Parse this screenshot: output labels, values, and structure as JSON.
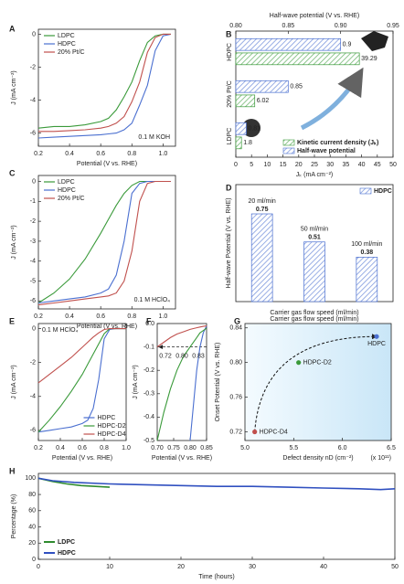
{
  "chart_data": [
    {
      "panel": "A",
      "type": "line",
      "xlabel": "Potential (V vs. RHE)",
      "ylabel": "J (mA cm⁻²)",
      "annotation": "0.1 M KOH",
      "x": [
        0.2,
        0.3,
        0.4,
        0.5,
        0.6,
        0.65,
        0.7,
        0.75,
        0.8,
        0.85,
        0.9,
        0.95,
        1.0,
        1.05
      ],
      "series": [
        {
          "name": "LDPC",
          "color": "#3a9a3a",
          "values": [
            -5.7,
            -5.6,
            -5.6,
            -5.5,
            -5.3,
            -5.1,
            -4.6,
            -3.8,
            -2.9,
            -1.6,
            -0.5,
            -0.1,
            0,
            0
          ]
        },
        {
          "name": "HDPC",
          "color": "#4a6fd0",
          "values": [
            -6.3,
            -6.25,
            -6.2,
            -6.15,
            -6.1,
            -6.05,
            -6.0,
            -5.8,
            -5.4,
            -4.3,
            -3.1,
            -1.0,
            -0.1,
            0
          ]
        },
        {
          "name": "20% Pt/C",
          "color": "#c0504d",
          "values": [
            -5.9,
            -5.9,
            -5.85,
            -5.8,
            -5.7,
            -5.6,
            -5.4,
            -5.0,
            -4.1,
            -2.9,
            -1.1,
            -0.2,
            0,
            0
          ]
        }
      ],
      "xlim": [
        0.2,
        1.08
      ],
      "ylim": [
        -6.8,
        0.3
      ],
      "xticks": [
        0.2,
        0.4,
        0.6,
        0.8,
        {
          "value": 1.0,
          "label": "1.0"
        }
      ],
      "yticks": [
        0,
        -2,
        -4,
        -6
      ],
      "legend": "upper left"
    },
    {
      "panel": "B",
      "type": "bar",
      "orientation": "horizontal",
      "x2label": "Half-wave potential (V vs. RHE)",
      "xlabel": "Jₖ (mA cm⁻²)",
      "categories": [
        "HDPC",
        "20% Pt/C",
        "LDPC"
      ],
      "series": [
        {
          "name": "Kinetic current density (Jₖ)",
          "color": "#3a9a3a",
          "values": [
            39.29,
            6.02,
            1.8
          ]
        },
        {
          "name": "Half-wave potential",
          "color": "#4a6fd0",
          "axis": "x2",
          "values": [
            0.9,
            0.85,
            0.81
          ]
        }
      ],
      "xlim": [
        0,
        50
      ],
      "xticks": [
        0,
        5,
        10,
        15,
        20,
        25,
        30,
        35,
        40,
        45,
        50
      ],
      "x2lim": [
        0.8,
        0.95
      ],
      "x2ticks": [
        {
          "value": 0.8,
          "label": "0.80"
        },
        0.85,
        {
          "value": 0.9,
          "label": "0.90"
        },
        0.95
      ],
      "legend": "lower right"
    },
    {
      "panel": "C",
      "type": "line",
      "xlabel": "Potential (V vs. RHE)",
      "ylabel": "J (mA cm⁻²)",
      "annotation": "0.1 M HClO₄",
      "x": [
        0.2,
        0.3,
        0.4,
        0.5,
        0.6,
        0.65,
        0.7,
        0.75,
        0.8,
        0.85,
        0.9,
        0.95,
        1.0,
        1.05
      ],
      "series": [
        {
          "name": "LDPC",
          "color": "#3a9a3a",
          "values": [
            -6.1,
            -5.6,
            -4.9,
            -3.9,
            -2.6,
            -1.9,
            -1.2,
            -0.6,
            -0.2,
            0,
            0,
            0,
            0,
            0
          ]
        },
        {
          "name": "HDPC",
          "color": "#4a6fd0",
          "values": [
            -6.1,
            -6.0,
            -5.9,
            -5.8,
            -5.6,
            -5.4,
            -4.7,
            -3.0,
            -0.6,
            -0.1,
            0,
            0,
            0,
            0
          ]
        },
        {
          "name": "20% Pt/C",
          "color": "#c0504d",
          "values": [
            -6.2,
            -6.1,
            -6.0,
            -5.9,
            -5.8,
            -5.75,
            -5.6,
            -5.0,
            -3.5,
            -1.0,
            -0.1,
            0,
            0,
            0
          ]
        }
      ],
      "xlim": [
        0.2,
        1.08
      ],
      "ylim": [
        -6.4,
        0.3
      ],
      "xticks": [
        0.2,
        0.4,
        0.6,
        0.8,
        {
          "value": 1.0,
          "label": "1.0"
        }
      ],
      "yticks": [
        0,
        -1,
        -2,
        -3,
        -4,
        -5,
        -6
      ],
      "legend": "upper left"
    },
    {
      "panel": "D",
      "type": "bar",
      "ylabel": "Half-wave Potential (V vs. RHE)",
      "xlabel": "Carrier gas flow speed (ml/min)",
      "categories": [
        "20 ml/min",
        "50 ml/min",
        "100 ml/min"
      ],
      "series": [
        {
          "name": "HDPC",
          "color": "#4a6fd0",
          "values": [
            0.75,
            0.51,
            0.38
          ]
        }
      ],
      "ylim": [
        0,
        1
      ],
      "legend": "upper right"
    },
    {
      "panel": "E",
      "type": "line",
      "xlabel": "Potential (V vs. RHE)",
      "ylabel": "J (mA cm⁻²)",
      "annotation": "0.1 M HClO₄",
      "x": [
        0.2,
        0.3,
        0.4,
        0.5,
        0.6,
        0.65,
        0.7,
        0.75,
        0.8,
        0.85,
        0.9,
        0.95,
        1.0
      ],
      "series": [
        {
          "name": "HDPC",
          "color": "#4a6fd0",
          "values": [
            -6.1,
            -6.0,
            -5.9,
            -5.8,
            -5.6,
            -5.4,
            -4.7,
            -3.0,
            -0.6,
            -0.05,
            0,
            0,
            0
          ]
        },
        {
          "name": "HDPC-D2",
          "color": "#3a9a3a",
          "values": [
            -6.1,
            -5.4,
            -4.6,
            -3.7,
            -2.7,
            -2.1,
            -1.5,
            -0.9,
            -0.3,
            0,
            0,
            0,
            0
          ]
        },
        {
          "name": "HDPC-D4",
          "color": "#c0504d",
          "values": [
            -3.2,
            -2.7,
            -2.2,
            -1.7,
            -1.1,
            -0.8,
            -0.5,
            -0.25,
            -0.05,
            0,
            0,
            0,
            0
          ]
        }
      ],
      "xlim": [
        0.2,
        1.0
      ],
      "ylim": [
        -6.6,
        0.3
      ],
      "xticks": [
        0.2,
        0.4,
        0.6,
        0.8,
        {
          "value": 1.0,
          "label": "1.0"
        }
      ],
      "yticks": [
        0,
        -2,
        -4,
        -6
      ],
      "legend": "lower right"
    },
    {
      "panel": "F",
      "type": "line",
      "xlabel": "Potential (V vs. RHE)",
      "ylabel": "J (mA cm⁻²)",
      "x": [
        0.7,
        0.72,
        0.74,
        0.76,
        0.78,
        0.8,
        0.82,
        0.83,
        0.84,
        0.85
      ],
      "series": [
        {
          "color": "#4a6fd0",
          "values": [
            null,
            null,
            null,
            null,
            null,
            -0.5,
            -0.2,
            -0.1,
            -0.04,
            -0.01
          ]
        },
        {
          "color": "#3a9a3a",
          "values": [
            -0.5,
            -0.38,
            -0.28,
            -0.2,
            -0.14,
            -0.1,
            -0.06,
            -0.04,
            -0.03,
            -0.02
          ]
        },
        {
          "color": "#c0504d",
          "values": [
            -0.1,
            -0.08,
            -0.06,
            -0.045,
            -0.035,
            -0.025,
            -0.018,
            -0.015,
            -0.012,
            -0.01
          ]
        }
      ],
      "hline": -0.1,
      "annotations": [
        {
          "text": "0.72",
          "color": "#c0504d"
        },
        {
          "text": "0.80",
          "color": "#3a9a3a"
        },
        {
          "text": "0.83",
          "color": "#4a6fd0"
        }
      ],
      "xlim": [
        0.7,
        0.85
      ],
      "ylim": [
        -0.5,
        0
      ],
      "xticks": [
        {
          "value": 0.7,
          "label": "0.70"
        },
        0.75,
        {
          "value": 0.8,
          "label": "0.80"
        },
        0.85
      ],
      "yticks": [
        {
          "value": 0,
          "label": "0.0"
        },
        -0.1,
        -0.2,
        -0.3,
        -0.4,
        -0.5
      ]
    },
    {
      "panel": "G",
      "type": "scatter",
      "xlabel": "Defect density nD (cm⁻²)",
      "xnote": "(x 10¹¹)",
      "ylabel": "Onset Potential (V vs. RHE)",
      "x": [
        5.1,
        5.55,
        6.35
      ],
      "values": [
        0.72,
        0.8,
        0.83
      ],
      "labels": [
        "HDPC-D4",
        "HDPC-D2",
        "HDPC"
      ],
      "colors": [
        "#c0504d",
        "#3a9a3a",
        "#4a6fd0"
      ],
      "xlim": [
        5.0,
        6.5
      ],
      "ylim": [
        0.71,
        0.845
      ],
      "xticks": [
        {
          "value": 5,
          "label": "5.0"
        },
        5.5,
        {
          "value": 6,
          "label": "6.0"
        },
        6.5
      ],
      "yticks": [
        0.72,
        0.76,
        {
          "value": 0.8,
          "label": "0.80"
        },
        0.84
      ]
    },
    {
      "panel": "H",
      "type": "line",
      "xlabel": "Time (hours)",
      "ylabel": "Percentage (%)",
      "series": [
        {
          "name": "LDPC",
          "color": "#2e8b2e",
          "x": [
            0,
            2,
            4,
            6,
            8,
            10
          ],
          "values": [
            100,
            96,
            93,
            91,
            90,
            89
          ]
        },
        {
          "name": "HDPC",
          "color": "#3050c0",
          "x": [
            0,
            2,
            5,
            10,
            15,
            20,
            25,
            30,
            35,
            40,
            45,
            48,
            50
          ],
          "values": [
            100,
            97,
            95,
            93,
            92,
            91,
            90,
            90,
            89,
            88,
            87,
            86,
            87
          ]
        }
      ],
      "xlim": [
        0,
        50
      ],
      "ylim": [
        0,
        106
      ],
      "xticks": [
        0,
        10,
        20,
        30,
        40,
        50
      ],
      "yticks": [
        0,
        20,
        40,
        60,
        80,
        100
      ],
      "legend": "lower left"
    }
  ]
}
